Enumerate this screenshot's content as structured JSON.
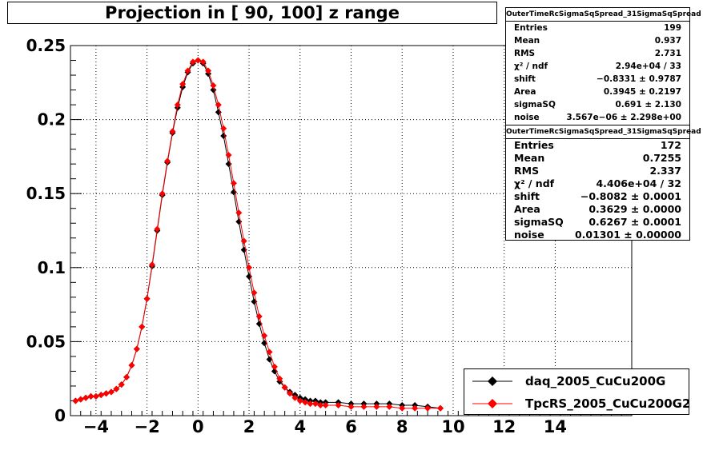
{
  "title": "Projection in [  90, 100] z range",
  "stats_boxes": [
    {
      "name": "OuterTimeRcSigmaSqSpread_31SigmaSqSpread",
      "rows": [
        {
          "label": "Entries",
          "value": "199"
        },
        {
          "label": "Mean",
          "value": "0.937"
        },
        {
          "label": "RMS",
          "value": "2.731"
        },
        {
          "label": "χ² / ndf",
          "value": "2.94e+04 / 33"
        },
        {
          "label": "shift",
          "value": "−0.8331 ± 0.9787"
        },
        {
          "label": "Area",
          "value": "0.3945 ± 0.2197"
        },
        {
          "label": "sigmaSQ",
          "value": "0.691 ± 2.130"
        },
        {
          "label": "noise",
          "value": "3.567e−06 ± 2.298e+00"
        }
      ]
    },
    {
      "name": "OuterTimeRcSigmaSqSpread_31SigmaSqSpread",
      "rows": [
        {
          "label": "Entries",
          "value": "172"
        },
        {
          "label": "Mean",
          "value": "0.7255"
        },
        {
          "label": "RMS",
          "value": "2.337"
        },
        {
          "label": "χ² / ndf",
          "value": "4.406e+04 / 32"
        },
        {
          "label": "shift",
          "value": "−0.8082 ± 0.0001"
        },
        {
          "label": "Area",
          "value": "0.3629 ± 0.0000"
        },
        {
          "label": "sigmaSQ",
          "value": "0.6267 ± 0.0001"
        },
        {
          "label": "noise",
          "value": "0.01301 ± 0.00000"
        }
      ]
    }
  ],
  "legend": [
    {
      "label": "daq_2005_CuCu200G",
      "color": "#000000"
    },
    {
      "label": "TpcRS_2005_CuCu200G2",
      "color": "#ff0000"
    }
  ],
  "chart_data": {
    "type": "scatter",
    "title": "Projection in [  90, 100] z range",
    "xlabel": "",
    "ylabel": "",
    "xlim": [
      -5,
      17
    ],
    "ylim": [
      0,
      0.25
    ],
    "x_ticks": [
      -4,
      -2,
      0,
      2,
      4,
      6,
      8,
      10,
      12,
      14
    ],
    "y_ticks": [
      0,
      0.05,
      0.1,
      0.15,
      0.2,
      0.25
    ],
    "y_tick_labels": [
      "0",
      "0.05",
      "0.1",
      "0.15",
      "0.2",
      "0.25"
    ],
    "grid": true,
    "legend_position": "bottom-right",
    "series": [
      {
        "name": "daq_2005_CuCu200G",
        "color": "#000000",
        "x": [
          -4.8,
          -4.6,
          -4.4,
          -4.2,
          -4.0,
          -3.8,
          -3.6,
          -3.4,
          -3.2,
          -3.0,
          -2.8,
          -2.6,
          -2.4,
          -2.2,
          -2.0,
          -1.8,
          -1.6,
          -1.4,
          -1.2,
          -1.0,
          -0.8,
          -0.6,
          -0.4,
          -0.2,
          0.0,
          0.2,
          0.4,
          0.6,
          0.8,
          1.0,
          1.2,
          1.4,
          1.6,
          1.8,
          2.0,
          2.2,
          2.4,
          2.6,
          2.8,
          3.0,
          3.2,
          3.4,
          3.6,
          3.8,
          4.0,
          4.2,
          4.4,
          4.6,
          4.8,
          5.0,
          5.5,
          6.0,
          6.5,
          7.0,
          7.5,
          8.0,
          8.5,
          9.0,
          9.5
        ],
        "y": [
          0.01,
          0.011,
          0.012,
          0.013,
          0.013,
          0.014,
          0.015,
          0.016,
          0.018,
          0.021,
          0.026,
          0.034,
          0.045,
          0.06,
          0.079,
          0.101,
          0.125,
          0.149,
          0.171,
          0.191,
          0.208,
          0.222,
          0.232,
          0.238,
          0.24,
          0.238,
          0.231,
          0.22,
          0.205,
          0.189,
          0.17,
          0.151,
          0.131,
          0.112,
          0.094,
          0.077,
          0.062,
          0.049,
          0.038,
          0.03,
          0.023,
          0.019,
          0.016,
          0.014,
          0.012,
          0.011,
          0.01,
          0.01,
          0.009,
          0.009,
          0.009,
          0.008,
          0.008,
          0.008,
          0.008,
          0.007,
          0.007,
          0.006,
          0.005
        ]
      },
      {
        "name": "TpcRS_2005_CuCu200G2",
        "color": "#ff0000",
        "x": [
          -4.8,
          -4.6,
          -4.4,
          -4.2,
          -4.0,
          -3.8,
          -3.6,
          -3.4,
          -3.2,
          -3.0,
          -2.8,
          -2.6,
          -2.4,
          -2.2,
          -2.0,
          -1.8,
          -1.6,
          -1.4,
          -1.2,
          -1.0,
          -0.8,
          -0.6,
          -0.4,
          -0.2,
          0.0,
          0.2,
          0.4,
          0.6,
          0.8,
          1.0,
          1.2,
          1.4,
          1.6,
          1.8,
          2.0,
          2.2,
          2.4,
          2.6,
          2.8,
          3.0,
          3.2,
          3.4,
          3.6,
          3.8,
          4.0,
          4.2,
          4.4,
          4.6,
          4.8,
          5.0,
          5.5,
          6.0,
          6.5,
          7.0,
          7.5,
          8.0,
          8.5,
          9.0,
          9.5
        ],
        "y": [
          0.01,
          0.011,
          0.012,
          0.013,
          0.013,
          0.014,
          0.015,
          0.016,
          0.018,
          0.021,
          0.026,
          0.034,
          0.045,
          0.06,
          0.079,
          0.102,
          0.126,
          0.15,
          0.172,
          0.192,
          0.21,
          0.224,
          0.233,
          0.239,
          0.24,
          0.239,
          0.233,
          0.223,
          0.21,
          0.194,
          0.176,
          0.157,
          0.137,
          0.118,
          0.1,
          0.083,
          0.067,
          0.054,
          0.043,
          0.033,
          0.025,
          0.019,
          0.015,
          0.012,
          0.01,
          0.009,
          0.008,
          0.008,
          0.007,
          0.007,
          0.007,
          0.006,
          0.006,
          0.006,
          0.006,
          0.005,
          0.005,
          0.005,
          0.005
        ]
      }
    ]
  }
}
